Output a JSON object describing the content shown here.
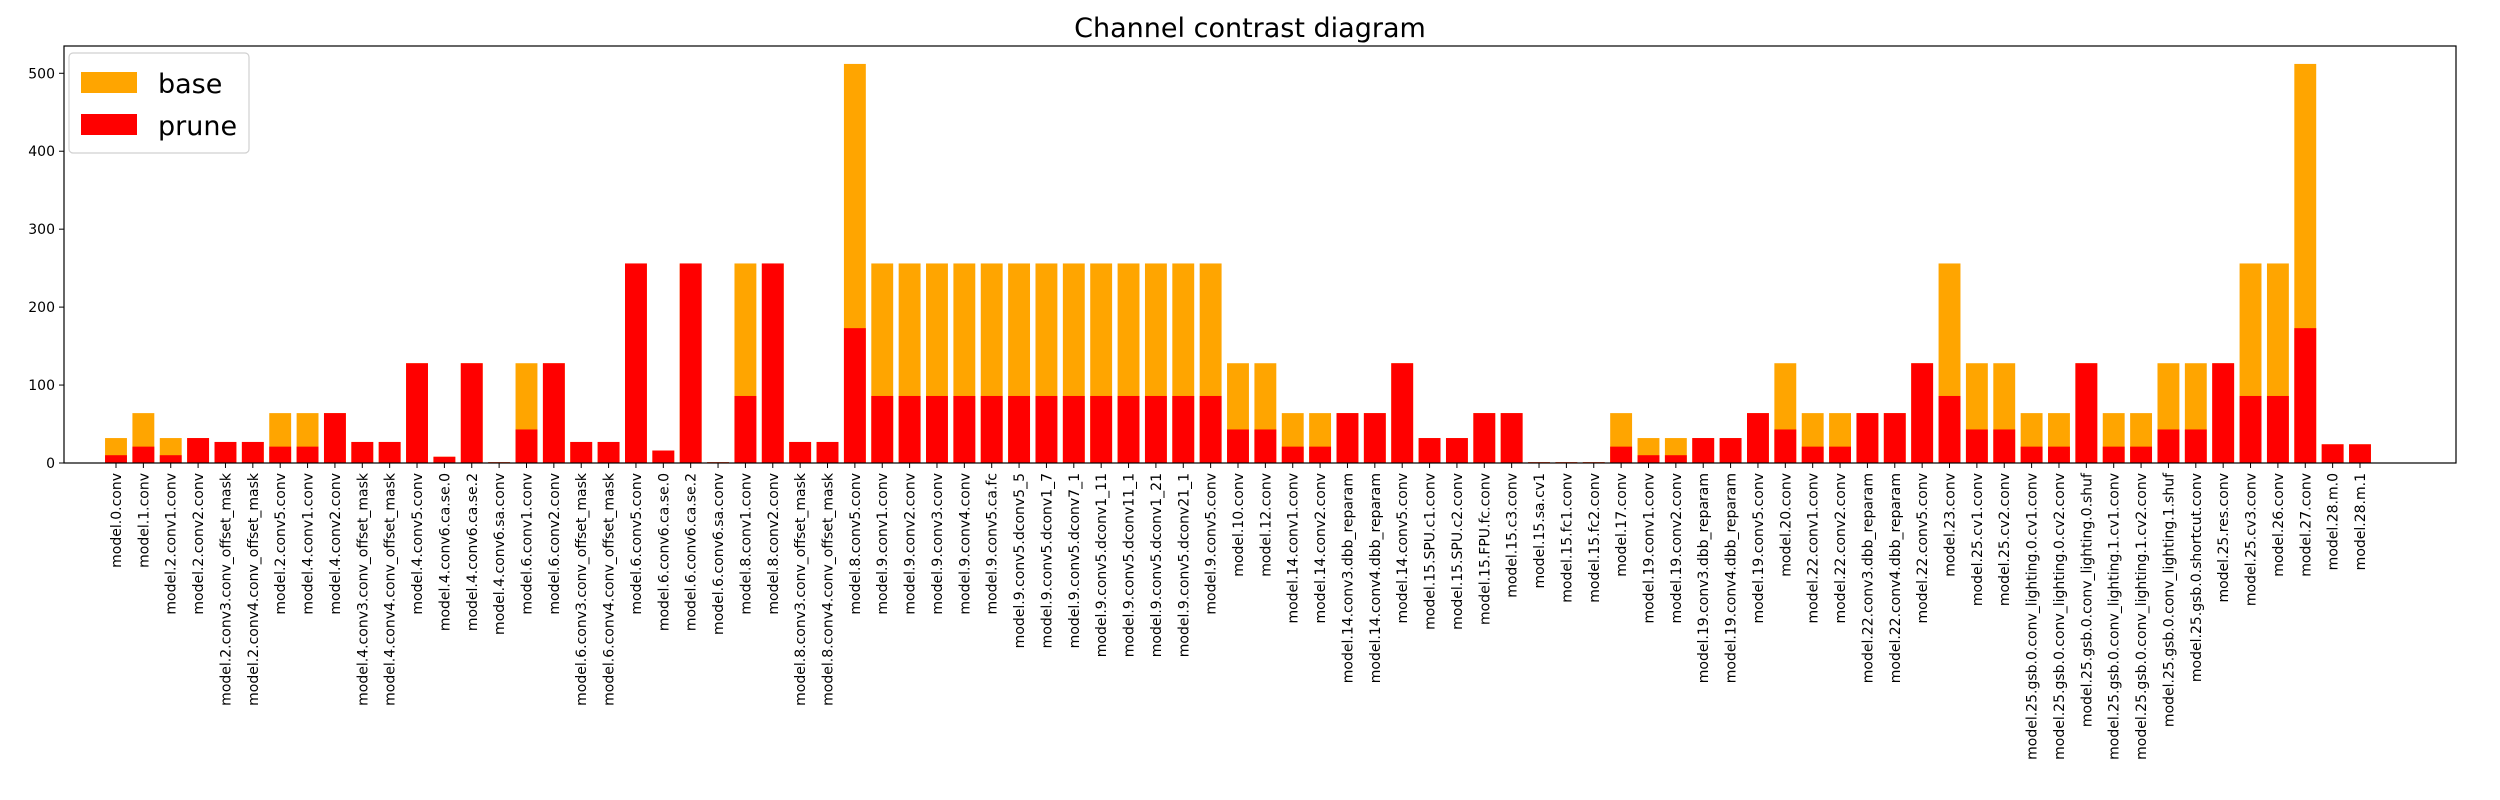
{
  "chart_data": {
    "type": "bar",
    "title": "Channel contrast diagram",
    "xlabel": "",
    "ylabel": "",
    "ylim": [
      0,
      535
    ],
    "yticks": [
      0,
      100,
      200,
      300,
      400,
      500
    ],
    "grid": false,
    "legend_position": "top-left",
    "stacking": "overlay",
    "categories": [
      "model.0.conv",
      "model.1.conv",
      "model.2.conv1.conv",
      "model.2.conv2.conv",
      "model.2.conv3.conv_offset_mask",
      "model.2.conv4.conv_offset_mask",
      "model.2.conv5.conv",
      "model.4.conv1.conv",
      "model.4.conv2.conv",
      "model.4.conv3.conv_offset_mask",
      "model.4.conv4.conv_offset_mask",
      "model.4.conv5.conv",
      "model.4.conv6.ca.se.0",
      "model.4.conv6.ca.se.2",
      "model.4.conv6.sa.conv",
      "model.6.conv1.conv",
      "model.6.conv2.conv",
      "model.6.conv3.conv_offset_mask",
      "model.6.conv4.conv_offset_mask",
      "model.6.conv5.conv",
      "model.6.conv6.ca.se.0",
      "model.6.conv6.ca.se.2",
      "model.6.conv6.sa.conv",
      "model.8.conv1.conv",
      "model.8.conv2.conv",
      "model.8.conv3.conv_offset_mask",
      "model.8.conv4.conv_offset_mask",
      "model.8.conv5.conv",
      "model.9.conv1.conv",
      "model.9.conv2.conv",
      "model.9.conv3.conv",
      "model.9.conv4.conv",
      "model.9.conv5.ca.fc",
      "model.9.conv5.dconv5_5",
      "model.9.conv5.dconv1_7",
      "model.9.conv5.dconv7_1",
      "model.9.conv5.dconv1_11",
      "model.9.conv5.dconv11_1",
      "model.9.conv5.dconv1_21",
      "model.9.conv5.dconv21_1",
      "model.9.conv5.conv",
      "model.10.conv",
      "model.12.conv",
      "model.14.conv1.conv",
      "model.14.conv2.conv",
      "model.14.conv3.dbb_reparam",
      "model.14.conv4.dbb_reparam",
      "model.14.conv5.conv",
      "model.15.SPU.c1.conv",
      "model.15.SPU.c2.conv",
      "model.15.FPU.fc.conv",
      "model.15.c3.conv",
      "model.15.sa.cv1",
      "model.15.fc1.conv",
      "model.15.fc2.conv",
      "model.17.conv",
      "model.19.conv1.conv",
      "model.19.conv2.conv",
      "model.19.conv3.dbb_reparam",
      "model.19.conv4.dbb_reparam",
      "model.19.conv5.conv",
      "model.20.conv",
      "model.22.conv1.conv",
      "model.22.conv2.conv",
      "model.22.conv3.dbb_reparam",
      "model.22.conv4.dbb_reparam",
      "model.22.conv5.conv",
      "model.23.conv",
      "model.25.cv1.conv",
      "model.25.cv2.conv",
      "model.25.gsb.0.conv_lighting.0.cv1.conv",
      "model.25.gsb.0.conv_lighting.0.cv2.conv",
      "model.25.gsb.0.conv_lighting.0.shuf",
      "model.25.gsb.0.conv_lighting.1.cv1.conv",
      "model.25.gsb.0.conv_lighting.1.cv2.conv",
      "model.25.gsb.0.conv_lighting.1.shuf",
      "model.25.gsb.0.shortcut.conv",
      "model.25.res.conv",
      "model.25.cv3.conv",
      "model.26.conv",
      "model.27.conv",
      "model.28.m.0",
      "model.28.m.1"
    ],
    "series": [
      {
        "name": "base",
        "color": "#FFA500",
        "values": [
          32,
          64,
          32,
          32,
          27,
          27,
          64,
          64,
          64,
          27,
          27,
          128,
          8,
          128,
          1,
          128,
          128,
          27,
          27,
          256,
          16,
          256,
          1,
          256,
          256,
          27,
          27,
          512,
          256,
          256,
          256,
          256,
          256,
          256,
          256,
          256,
          256,
          256,
          256,
          256,
          256,
          128,
          128,
          64,
          64,
          64,
          64,
          128,
          32,
          32,
          64,
          64,
          1,
          1,
          1,
          64,
          32,
          32,
          32,
          32,
          64,
          128,
          64,
          64,
          64,
          64,
          128,
          256,
          128,
          128,
          64,
          64,
          128,
          64,
          64,
          128,
          128,
          128,
          256,
          256,
          512,
          24,
          24
        ]
      },
      {
        "name": "prune",
        "color": "#FF0000",
        "values": [
          10,
          21,
          10,
          32,
          27,
          27,
          21,
          21,
          64,
          27,
          27,
          128,
          8,
          128,
          1,
          43,
          128,
          27,
          27,
          256,
          16,
          256,
          1,
          86,
          256,
          27,
          27,
          173,
          86,
          86,
          86,
          86,
          86,
          86,
          86,
          86,
          86,
          86,
          86,
          86,
          86,
          43,
          43,
          21,
          21,
          64,
          64,
          128,
          32,
          32,
          64,
          64,
          1,
          1,
          1,
          21,
          10,
          10,
          32,
          32,
          64,
          43,
          21,
          21,
          64,
          64,
          128,
          86,
          43,
          43,
          21,
          21,
          128,
          21,
          21,
          43,
          43,
          128,
          86,
          86,
          173,
          24,
          24
        ]
      }
    ]
  }
}
